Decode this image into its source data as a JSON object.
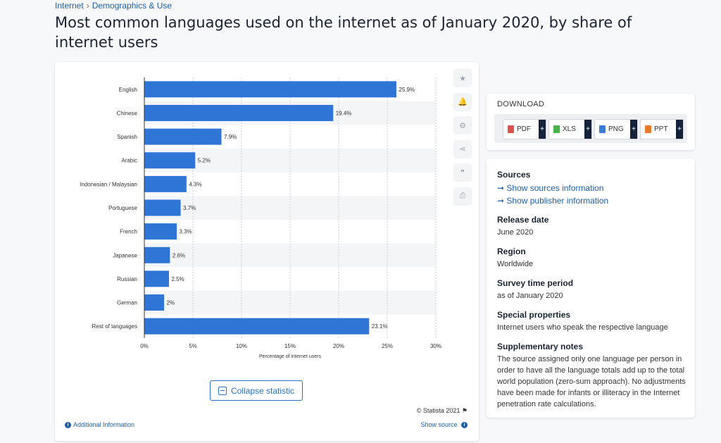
{
  "breadcrumb": {
    "part1": "Internet",
    "sep": "›",
    "part2": "Demographics & Use"
  },
  "page_title": "Most common languages used on the internet as of January 2020, by share of internet users",
  "chart_data": {
    "type": "bar",
    "orientation": "horizontal",
    "categories": [
      "English",
      "Chinese",
      "Spanish",
      "Arabic",
      "Indonesian / Malaysian",
      "Portuguese",
      "French",
      "Japanese",
      "Russian",
      "German",
      "Rest of languages"
    ],
    "values": [
      25.9,
      19.4,
      7.9,
      5.2,
      4.3,
      3.7,
      3.3,
      2.6,
      2.5,
      2,
      23.1
    ],
    "value_labels": [
      "25.9%",
      "19.4%",
      "7.9%",
      "5.2%",
      "4.3%",
      "3.7%",
      "3.3%",
      "2.6%",
      "2.5%",
      "2%",
      "23.1%"
    ],
    "xlim": [
      0,
      30
    ],
    "xticks": [
      "0%",
      "5%",
      "10%",
      "15%",
      "20%",
      "25%",
      "30%"
    ],
    "xlabel": "Percentage of internet users",
    "bar_color": "#2e75d6",
    "grid": true
  },
  "chart_tools": [
    {
      "name": "star-icon",
      "glyph": "★"
    },
    {
      "name": "bell-icon",
      "glyph": "🔔"
    },
    {
      "name": "gear-icon",
      "glyph": "⚙"
    },
    {
      "name": "share-icon",
      "glyph": "⋖"
    },
    {
      "name": "quote-icon",
      "glyph": "❞"
    },
    {
      "name": "print-icon",
      "glyph": "⎙"
    }
  ],
  "collapse_label": "Collapse statistic",
  "copyright": "© Statista 2021",
  "additional_info": "Additional Information",
  "show_source": "Show source",
  "download": {
    "title": "DOWNLOAD",
    "buttons": [
      {
        "label": "PDF",
        "color": "#d9534f"
      },
      {
        "label": "XLS",
        "color": "#4caf50"
      },
      {
        "label": "PNG",
        "color": "#3b7bd8"
      },
      {
        "label": "PPT",
        "color": "#e8782b"
      }
    ],
    "plus": "+"
  },
  "meta": {
    "sources_title": "Sources",
    "sources_link1": "➞ Show sources information",
    "sources_link2": "➞ Show publisher information",
    "release_title": "Release date",
    "release_value": "June 2020",
    "region_title": "Region",
    "region_value": "Worldwide",
    "survey_title": "Survey time period",
    "survey_value": "as of January 2020",
    "special_title": "Special properties",
    "special_value": "Internet users who speak the respective language",
    "supp_title": "Supplementary notes",
    "supp_value": "The source assigned only one language per person in order to have all the language totals add up to the total world population (zero-sum approach). No adjustments have been made for infants or illiteracy in the Internet penetration rate calculations."
  }
}
